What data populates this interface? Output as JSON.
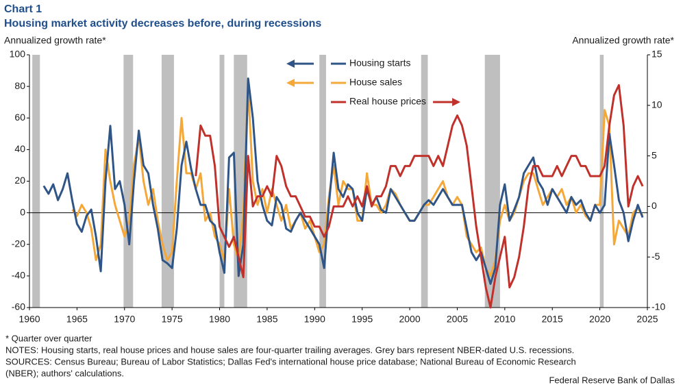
{
  "chart_data": {
    "type": "line",
    "title": "Chart 1",
    "subtitle": "Housing market activity decreases before, during recessions",
    "ylabel": "Annualized  growth rate*",
    "y2label": "Annualized  growth rate*",
    "notes": [
      "* Quarter over quarter",
      "NOTES: Housing starts, real house prices and house sales are four-quarter trailing averages. Grey bars represent NBER-dated U.S. recessions.",
      "SOURCES: Census Bureau; Bureau of Labor Statistics; Dallas Fed's international house price database; National Bureau of Economic Research",
      "(NBER); authors' calculations."
    ],
    "source": "Federal Reserve Bank of Dallas",
    "xlim": [
      1960,
      2025
    ],
    "xticks": [
      1960,
      1965,
      1970,
      1975,
      1980,
      1985,
      1990,
      1995,
      2000,
      2005,
      2010,
      2015,
      2020,
      2025
    ],
    "ylim": [
      -60,
      100
    ],
    "yticks": [
      -60,
      -40,
      -20,
      0,
      20,
      40,
      60,
      80,
      100
    ],
    "y2lim": [
      -10,
      15
    ],
    "y2ticks": [
      -10,
      -5,
      0,
      5,
      10,
      15
    ],
    "recessions": [
      [
        1960.3,
        1961.1
      ],
      [
        1969.9,
        1970.9
      ],
      [
        1973.9,
        1975.2
      ],
      [
        1980.0,
        1980.5
      ],
      [
        1981.5,
        1982.9
      ],
      [
        1990.5,
        1991.2
      ],
      [
        2001.2,
        2001.9
      ],
      [
        2007.9,
        2009.5
      ],
      [
        2020.0,
        2020.4
      ]
    ],
    "recession_color": "#bfbfbf",
    "x": [
      1961.5,
      1962,
      1962.5,
      1963,
      1963.5,
      1964,
      1964.5,
      1965,
      1965.5,
      1966,
      1966.5,
      1967,
      1967.5,
      1968,
      1968.5,
      1969,
      1969.5,
      1970,
      1970.5,
      1971,
      1971.5,
      1972,
      1972.5,
      1973,
      1973.5,
      1974,
      1974.5,
      1975,
      1975.5,
      1976,
      1976.5,
      1977,
      1977.5,
      1978,
      1978.5,
      1979,
      1979.5,
      1980,
      1980.5,
      1981,
      1981.5,
      1982,
      1982.5,
      1983,
      1983.5,
      1984,
      1984.5,
      1985,
      1985.5,
      1986,
      1986.5,
      1987,
      1987.5,
      1988,
      1988.5,
      1989,
      1989.5,
      1990,
      1990.5,
      1991,
      1991.5,
      1992,
      1992.5,
      1993,
      1993.5,
      1994,
      1994.5,
      1995,
      1995.5,
      1996,
      1996.5,
      1997,
      1997.5,
      1998,
      1998.5,
      1999,
      1999.5,
      2000,
      2000.5,
      2001,
      2001.5,
      2002,
      2002.5,
      2003,
      2003.5,
      2004,
      2004.5,
      2005,
      2005.5,
      2006,
      2006.5,
      2007,
      2007.5,
      2008,
      2008.5,
      2009,
      2009.5,
      2010,
      2010.5,
      2011,
      2011.5,
      2012,
      2012.5,
      2013,
      2013.5,
      2014,
      2014.5,
      2015,
      2015.5,
      2016,
      2016.5,
      2017,
      2017.5,
      2018,
      2018.5,
      2019,
      2019.5,
      2020,
      2020.5,
      2021,
      2021.5,
      2022,
      2022.5,
      2023,
      2023.5,
      2024,
      2024.5
    ],
    "series": [
      {
        "name": "Housing starts",
        "color": "#2f5486",
        "axis": "y",
        "values": [
          17,
          12,
          18,
          8,
          15,
          25,
          8,
          -7,
          -12,
          -2,
          2,
          -15,
          -37,
          20,
          55,
          15,
          20,
          5,
          -20,
          20,
          52,
          30,
          25,
          5,
          -10,
          -30,
          -32,
          -35,
          -10,
          30,
          45,
          28,
          15,
          5,
          5,
          -5,
          -8,
          -25,
          -38,
          35,
          38,
          -40,
          -20,
          85,
          60,
          20,
          5,
          -5,
          -8,
          10,
          5,
          -10,
          -12,
          -5,
          0,
          -5,
          -10,
          -15,
          -20,
          -35,
          5,
          38,
          15,
          10,
          18,
          15,
          0,
          -5,
          15,
          5,
          10,
          2,
          0,
          15,
          10,
          5,
          0,
          -5,
          -5,
          0,
          5,
          8,
          5,
          10,
          15,
          10,
          5,
          5,
          5,
          -10,
          -25,
          -30,
          -25,
          -35,
          -45,
          -35,
          5,
          18,
          -5,
          2,
          10,
          25,
          30,
          35,
          20,
          15,
          5,
          15,
          10,
          5,
          0,
          10,
          5,
          8,
          0,
          -5,
          5,
          0,
          5,
          50,
          30,
          8,
          0,
          -18,
          -5,
          5,
          -3
        ]
      },
      {
        "name": "House sales",
        "color": "#f5a83a",
        "axis": "y",
        "values": [
          null,
          null,
          null,
          null,
          null,
          null,
          2,
          -2,
          5,
          0,
          -10,
          -30,
          -20,
          40,
          20,
          5,
          -5,
          -15,
          -5,
          30,
          48,
          20,
          5,
          15,
          -5,
          -20,
          -30,
          -25,
          20,
          60,
          25,
          25,
          15,
          25,
          -5,
          0,
          -15,
          -20,
          -30,
          15,
          -20,
          -30,
          0,
          80,
          20,
          5,
          15,
          0,
          15,
          5,
          -5,
          5,
          -10,
          -5,
          0,
          -10,
          -5,
          -15,
          -25,
          -20,
          10,
          30,
          5,
          20,
          15,
          15,
          -5,
          -5,
          25,
          5,
          5,
          0,
          5,
          15,
          12,
          5,
          0,
          -5,
          -5,
          0,
          5,
          5,
          10,
          15,
          20,
          10,
          5,
          10,
          5,
          -15,
          -20,
          -25,
          -22,
          -35,
          -40,
          -30,
          -5,
          5,
          -5,
          0,
          10,
          20,
          25,
          25,
          15,
          5,
          10,
          15,
          10,
          15,
          5,
          10,
          0,
          5,
          -2,
          -5,
          5,
          5,
          65,
          55,
          -20,
          -5,
          -10,
          -15,
          0,
          3,
          -2
        ]
      },
      {
        "name": "Real house prices",
        "color": "#c0312b",
        "axis": "y2",
        "values": [
          null,
          null,
          null,
          null,
          null,
          null,
          null,
          null,
          null,
          null,
          null,
          null,
          null,
          null,
          null,
          null,
          null,
          null,
          null,
          null,
          null,
          null,
          null,
          null,
          null,
          null,
          null,
          null,
          null,
          null,
          null,
          null,
          3,
          8,
          7,
          7,
          4,
          -2,
          -3,
          -4,
          -3,
          -5,
          -7,
          5,
          0,
          1,
          1,
          2,
          1,
          5,
          4,
          2,
          1,
          1,
          0,
          -1,
          -1,
          -2,
          -2,
          -3,
          -2,
          0,
          0,
          0,
          1,
          0,
          1,
          0,
          2,
          0,
          1,
          1,
          2,
          4,
          4,
          3,
          4,
          4,
          5,
          5,
          5,
          5,
          4,
          5,
          4,
          6,
          8,
          9,
          8,
          6,
          2,
          -2,
          -5,
          -8,
          -10,
          -7,
          -5,
          -3,
          -8,
          -7,
          -5,
          -2,
          2,
          4,
          4,
          3,
          3,
          3,
          4,
          3,
          4,
          5,
          5,
          4,
          4,
          3,
          3,
          3,
          4,
          8,
          11,
          12,
          8,
          0,
          2,
          3,
          2
        ]
      }
    ]
  }
}
